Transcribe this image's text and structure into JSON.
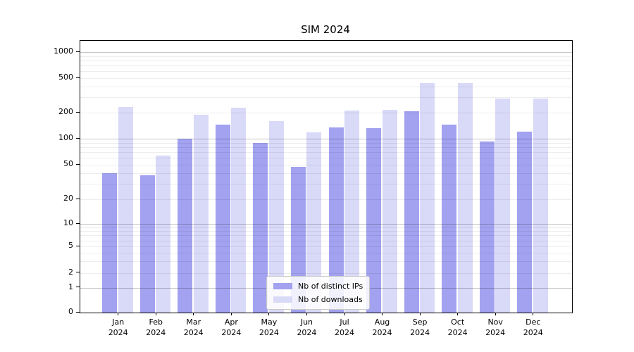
{
  "title": "SIM 2024",
  "y_axis": {
    "tick_values": [
      1000,
      500,
      200,
      100,
      50,
      20,
      10,
      5,
      2,
      1,
      0
    ],
    "tick_labels": [
      "1000",
      "500",
      "200",
      "100",
      "50",
      "20",
      "10",
      "5",
      "2",
      "1",
      "0"
    ]
  },
  "x_axis": {
    "months": [
      "Jan",
      "Feb",
      "Mar",
      "Apr",
      "May",
      "Jun",
      "Jul",
      "Aug",
      "Sep",
      "Oct",
      "Nov",
      "Dec"
    ],
    "year": "2024"
  },
  "legend": {
    "items": [
      {
        "label": "Nb of distinct IPs",
        "color": "#a2a2f0"
      },
      {
        "label": "Nb of downloads",
        "color": "#d9d9f8"
      }
    ]
  },
  "chart_data": {
    "type": "bar",
    "title": "SIM 2024",
    "categories": [
      "Jan 2024",
      "Feb 2024",
      "Mar 2024",
      "Apr 2024",
      "May 2024",
      "Jun 2024",
      "Jul 2024",
      "Aug 2024",
      "Sep 2024",
      "Oct 2024",
      "Nov 2024",
      "Dec 2024"
    ],
    "series": [
      {
        "name": "Nb of distinct IPs",
        "color": "#a2a2f0",
        "values": [
          40,
          38,
          100,
          145,
          90,
          47,
          135,
          132,
          207,
          146,
          93,
          120
        ]
      },
      {
        "name": "Nb of downloads",
        "color": "#d9d9f8",
        "values": [
          232,
          64,
          190,
          228,
          160,
          119,
          210,
          216,
          438,
          438,
          290,
          290
        ]
      }
    ],
    "xlabel": "",
    "ylabel": "",
    "yscale": "symlog-like (log above 1, linear 0-1)",
    "y_ticks": [
      0,
      1,
      2,
      5,
      10,
      20,
      50,
      100,
      200,
      500,
      1000
    ],
    "ylim": [
      0,
      1400
    ],
    "grid": "both (major lines at powers of 10, minor at 2-9 multiples)",
    "legend_position": "lower center-right inside plot"
  }
}
